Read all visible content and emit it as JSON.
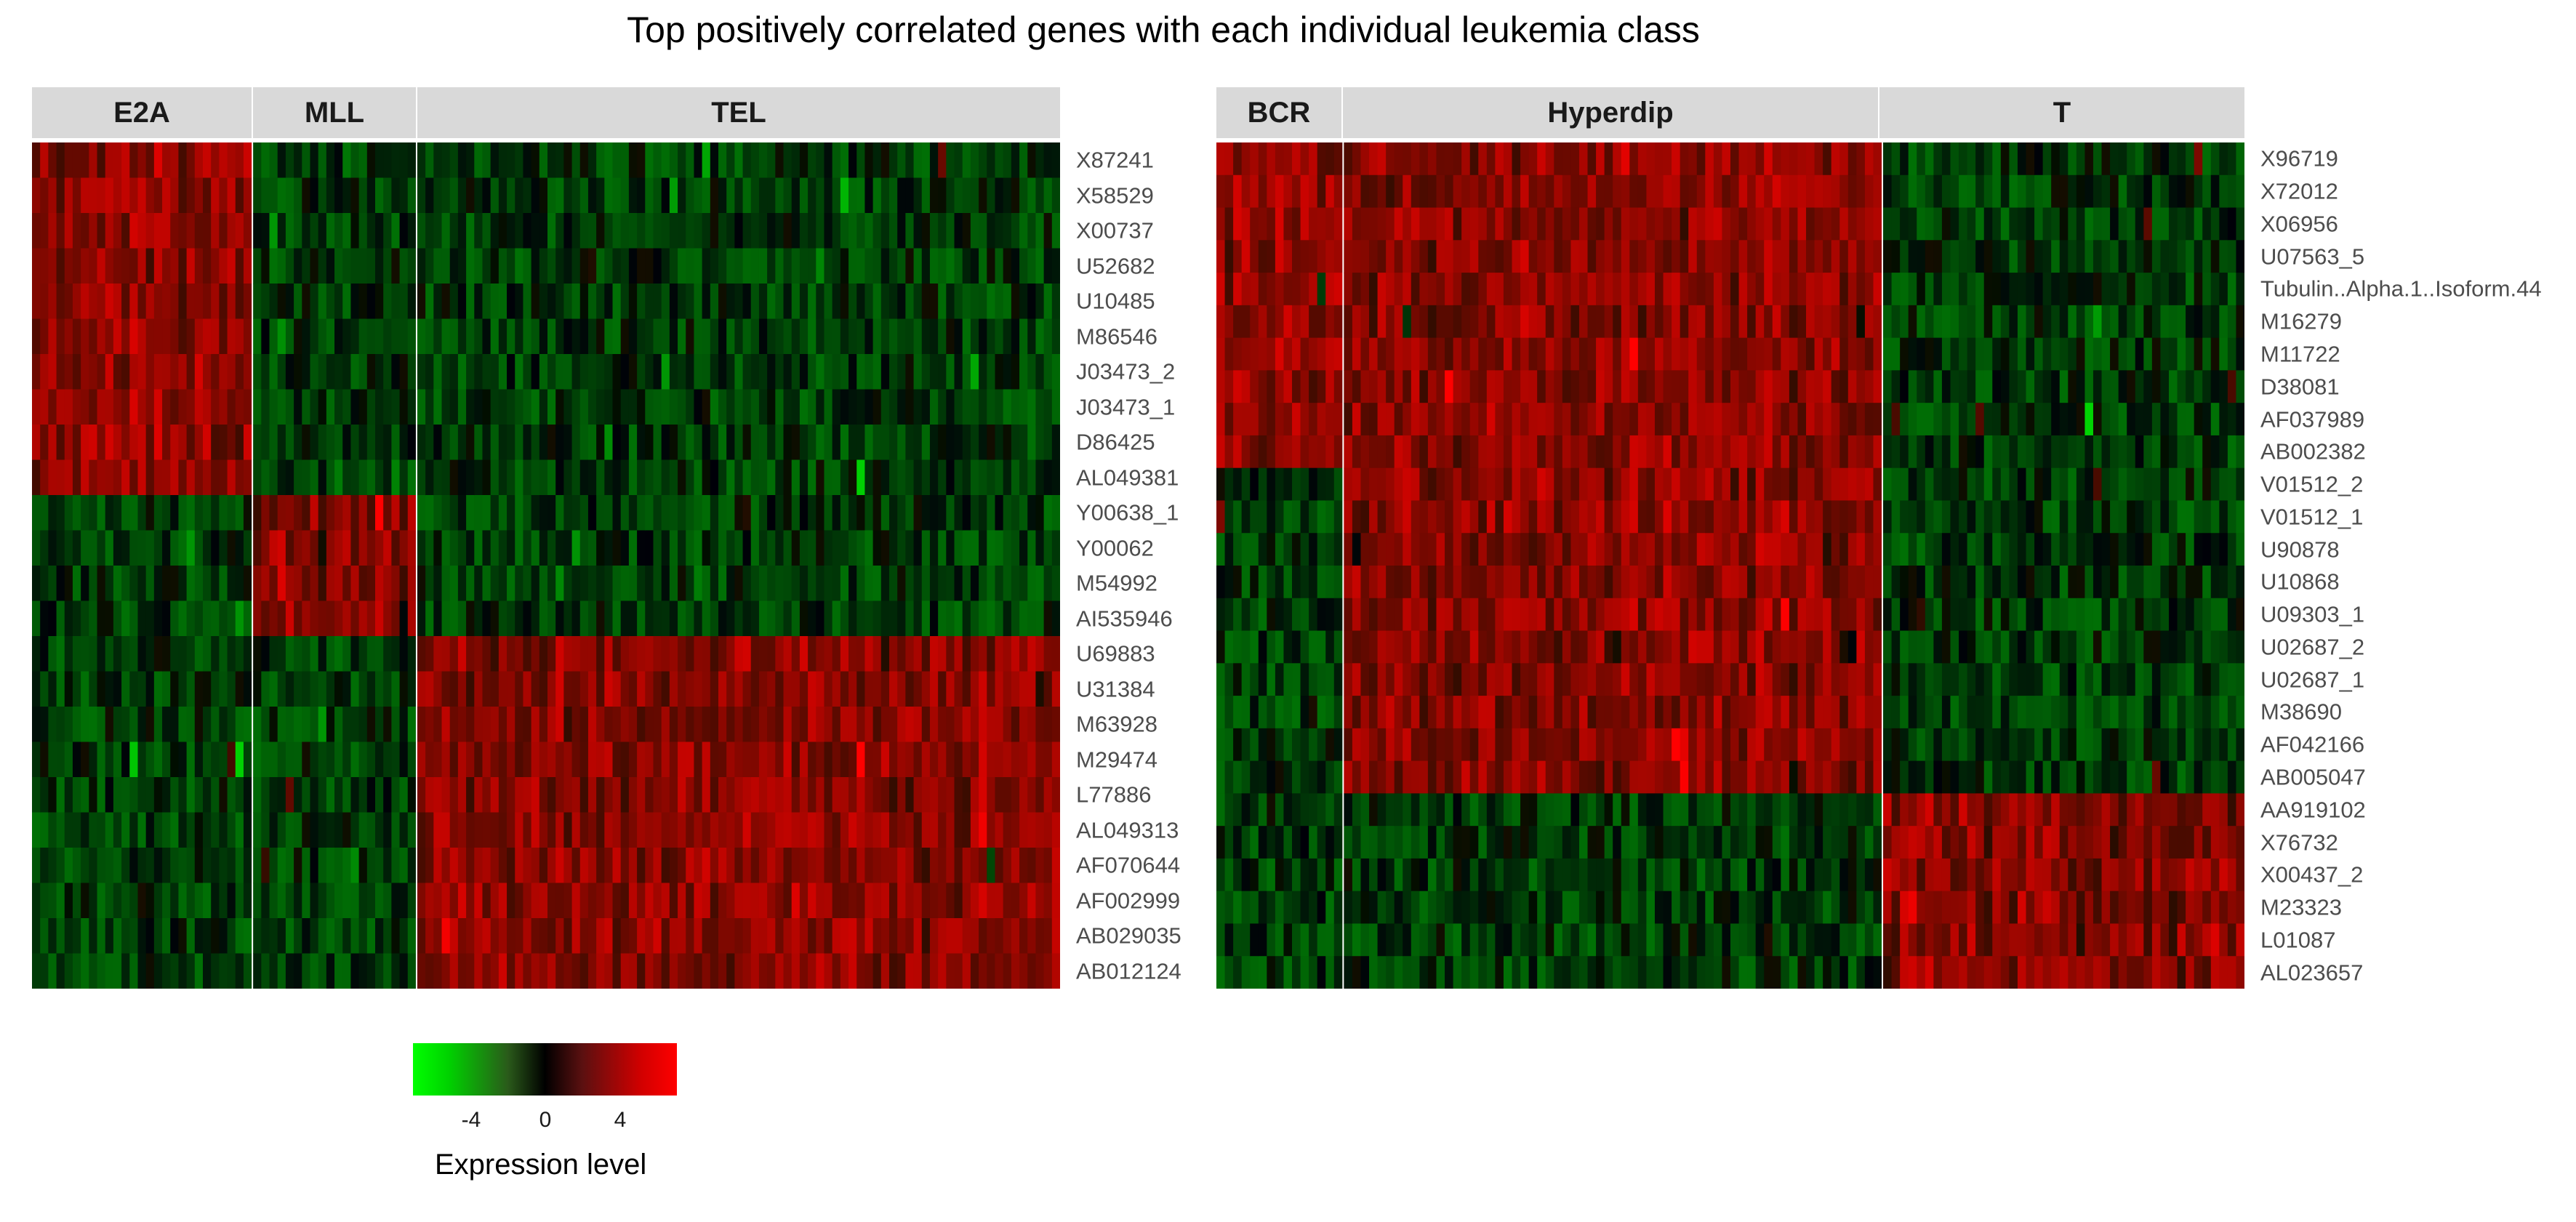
{
  "title": "Top positively correlated genes with each individual leukemia class",
  "chart_data": {
    "type": "heatmap",
    "title": "Top positively correlated genes with each individual leukemia class",
    "color_scale": {
      "title": "Expression level",
      "low_color": "#00ff00",
      "mid_color": "#000000",
      "high_color": "#ff0000",
      "ticks": [
        "-4",
        "0",
        "4"
      ],
      "tick_values": [
        -4,
        0,
        4
      ],
      "range": [
        -6,
        6
      ]
    },
    "panels": [
      {
        "name": "left",
        "classes": [
          {
            "label": "E2A",
            "n_samples": 27,
            "marker_rows": [
              0,
              10
            ]
          },
          {
            "label": "MLL",
            "n_samples": 20,
            "marker_rows": [
              10,
              14
            ]
          },
          {
            "label": "TEL",
            "n_samples": 79,
            "marker_rows": [
              14,
              24
            ]
          }
        ],
        "genes": [
          "X87241",
          "X58529",
          "X00737",
          "U52682",
          "U10485",
          "M86546",
          "J03473_2",
          "J03473_1",
          "D86425",
          "AL049381",
          "Y00638_1",
          "Y00062",
          "M54992",
          "AI535946",
          "U69883",
          "U31384",
          "M63928",
          "M29474",
          "L77886",
          "AL049313",
          "AF070644",
          "AF002999",
          "AB029035",
          "AB012124"
        ]
      },
      {
        "name": "right",
        "classes": [
          {
            "label": "BCR",
            "n_samples": 15,
            "marker_rows": [
              0,
              10
            ]
          },
          {
            "label": "Hyperdip",
            "n_samples": 64,
            "marker_rows": [
              0,
              20
            ]
          },
          {
            "label": "T",
            "n_samples": 43,
            "marker_rows": [
              20,
              26
            ]
          }
        ],
        "genes": [
          "X96719",
          "X72012",
          "X06956",
          "U07563_5",
          "Tubulin..Alpha.1..Isoform.44",
          "M16279",
          "M11722",
          "D38081",
          "AF037989",
          "AB002382",
          "V01512_2",
          "V01512_1",
          "U90878",
          "U10868",
          "U09303_1",
          "U02687_2",
          "U02687_1",
          "M38690",
          "AF042166",
          "AB005047",
          "AA919102",
          "X76732",
          "X00437_2",
          "M23323",
          "L01087",
          "AL023657"
        ]
      }
    ]
  }
}
